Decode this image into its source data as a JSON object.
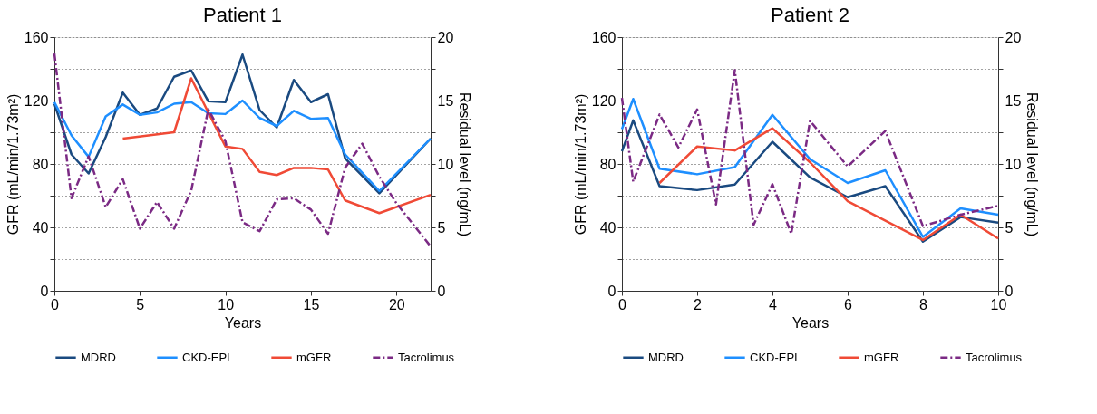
{
  "chart_data": [
    {
      "type": "line",
      "title": "Patient 1",
      "xlabel": "Years",
      "ylabel": "GFR (mL/min/1.73m²)",
      "y2label": "Residual level (ng/mL)",
      "xlim": [
        0,
        22
      ],
      "xticks": [
        0,
        5,
        10,
        15,
        20
      ],
      "ylim": [
        0,
        160
      ],
      "yticks": [
        0,
        {
          "value": 20,
          "label": null
        },
        40,
        {
          "value": 60,
          "label": null
        },
        80,
        {
          "value": 100,
          "label": null
        },
        120,
        {
          "value": 140,
          "label": null
        },
        160
      ],
      "y2lim": [
        0,
        20
      ],
      "y2ticks": [
        0,
        {
          "value": 2.5,
          "label": null
        },
        5,
        {
          "value": 7.5,
          "label": null
        },
        10,
        {
          "value": 12.5,
          "label": null
        },
        15,
        {
          "value": 17.5,
          "label": null
        },
        20
      ],
      "grid": "y",
      "legend": "bottom",
      "series": [
        {
          "name": "MDRD",
          "color": "#1a4a80",
          "x": [
            0,
            1,
            2,
            3,
            4,
            5,
            6,
            7,
            8,
            9,
            10,
            11,
            12,
            13,
            14,
            15,
            16,
            17,
            19,
            22
          ],
          "values": [
            118,
            86,
            74,
            97,
            125,
            111,
            115,
            135,
            139,
            119.5,
            119,
            149,
            114,
            103,
            133,
            119,
            124,
            83.5,
            61.5,
            96
          ]
        },
        {
          "name": "CKD-EPI",
          "color": "#1e8fff",
          "x": [
            0,
            1,
            2,
            3,
            4,
            5,
            6,
            7,
            8,
            9,
            10,
            11,
            12,
            13,
            14,
            15,
            16,
            17,
            19,
            22
          ],
          "values": [
            119,
            98,
            84.5,
            110,
            117.5,
            111,
            112.5,
            118,
            119,
            112,
            111.5,
            120,
            109,
            104,
            113.5,
            108.5,
            109,
            86,
            63,
            96
          ]
        },
        {
          "name": "mGFR",
          "color": "#f04a36",
          "x": [
            4,
            7,
            8,
            10,
            11,
            12,
            13,
            14,
            15,
            16,
            17,
            19,
            22
          ],
          "values": [
            96,
            100,
            134,
            91,
            89.5,
            75,
            73,
            77.5,
            77.5,
            76.5,
            57,
            49,
            60.5
          ]
        },
        {
          "name": "Tacrolimus",
          "color": "#7b2a84",
          "axis": "y2",
          "line_style": "dashed",
          "x": [
            0,
            1,
            2,
            3,
            4,
            5,
            6,
            7,
            8,
            9,
            10,
            11,
            12,
            13,
            14,
            15,
            16,
            17,
            18,
            19,
            20,
            22
          ],
          "values": [
            18.7,
            7.3,
            10.6,
            6.6,
            8.8,
            4.9,
            7.0,
            4.9,
            7.9,
            14.3,
            11.8,
            5.4,
            4.7,
            7.2,
            7.3,
            6.4,
            4.5,
            9.7,
            11.6,
            9.0,
            6.9,
            3.5
          ]
        }
      ]
    },
    {
      "type": "line",
      "title": "Patient 2",
      "xlabel": "Years",
      "ylabel": "GFR (mL/min/1.73m²)",
      "y2label": "Residual level (ng/mL)",
      "xlim": [
        0,
        10
      ],
      "xticks": [
        0,
        2,
        4,
        6,
        8,
        10
      ],
      "ylim": [
        0,
        160
      ],
      "yticks": [
        0,
        {
          "value": 20,
          "label": null
        },
        40,
        {
          "value": 60,
          "label": null
        },
        80,
        {
          "value": 100,
          "label": null
        },
        120,
        {
          "value": 140,
          "label": null
        },
        160
      ],
      "y2lim": [
        0,
        20
      ],
      "y2ticks": [
        0,
        {
          "value": 2.5,
          "label": null
        },
        5,
        {
          "value": 7.5,
          "label": null
        },
        10,
        {
          "value": 12.5,
          "label": null
        },
        15,
        {
          "value": 17.5,
          "label": null
        },
        20
      ],
      "grid": "y",
      "legend": "bottom",
      "series": [
        {
          "name": "MDRD",
          "color": "#1a4a80",
          "x": [
            0,
            0.3,
            1,
            2,
            3,
            4,
            5,
            6,
            7,
            8,
            9,
            10
          ],
          "values": [
            88,
            107.5,
            66,
            63.5,
            67,
            94,
            71.5,
            59,
            66,
            31,
            46.5,
            43
          ]
        },
        {
          "name": "CKD-EPI",
          "color": "#1e8fff",
          "x": [
            0,
            0.3,
            1,
            2,
            3,
            4,
            5,
            6,
            7,
            8,
            9,
            10
          ],
          "values": [
            102,
            121,
            77,
            73.5,
            78,
            111,
            83,
            68,
            76,
            34,
            52,
            48
          ]
        },
        {
          "name": "mGFR",
          "color": "#f04a36",
          "x": [
            1,
            2,
            3,
            4,
            5,
            6,
            8,
            9,
            10
          ],
          "values": [
            68,
            91,
            88.5,
            102.5,
            81,
            56.5,
            32,
            48,
            33
          ]
        },
        {
          "name": "Tacrolimus",
          "color": "#7b2a84",
          "axis": "y2",
          "line_style": "dashed",
          "x": [
            0,
            0.3,
            1,
            1.5,
            2,
            2.5,
            3,
            3.5,
            4,
            4.5,
            5,
            6,
            7,
            8,
            9,
            10
          ],
          "values": [
            15.2,
            8.6,
            13.9,
            11.3,
            14.3,
            6.8,
            17.4,
            5.2,
            8.4,
            4.5,
            13.4,
            9.8,
            12.6,
            5.1,
            6.0,
            6.7
          ]
        }
      ]
    }
  ]
}
